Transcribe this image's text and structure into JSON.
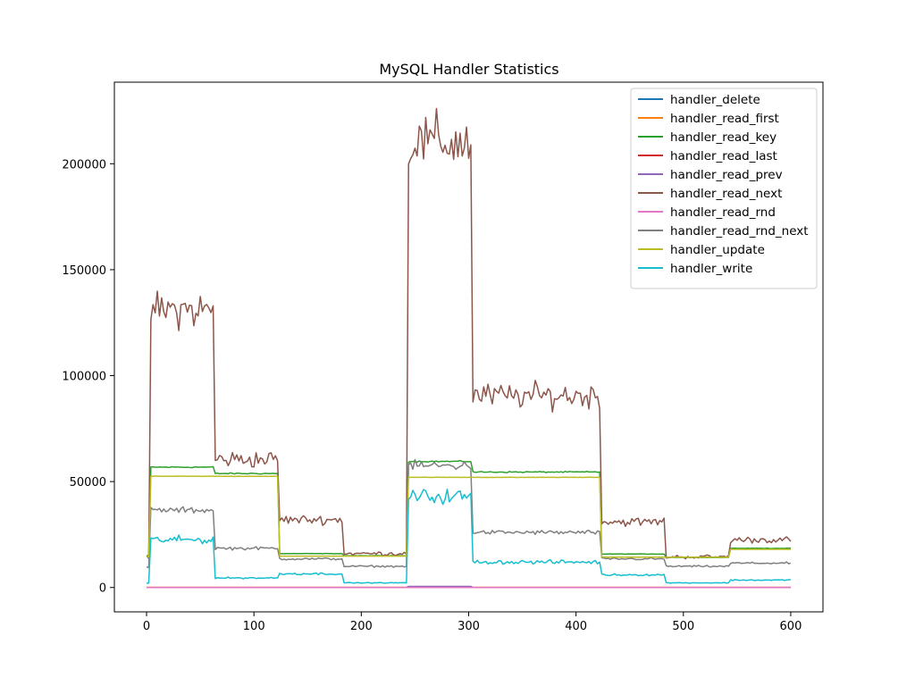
{
  "chart_data": {
    "type": "line",
    "title": "MySQL Handler Statistics",
    "xlabel": "",
    "ylabel": "",
    "xlim": [
      -30,
      630
    ],
    "ylim": [
      -11500,
      238500
    ],
    "x_ticks": [
      0,
      100,
      200,
      300,
      400,
      500,
      600
    ],
    "y_ticks": [
      0,
      50000,
      100000,
      150000,
      200000
    ],
    "grid": false,
    "legend_position": "top-right",
    "x_step": 2,
    "x_count": 300,
    "series": [
      {
        "name": "handler_delete",
        "color": "#1f77b4",
        "noise": 0,
        "segments": [
          {
            "x_start": 0,
            "x_end": 600,
            "y": 0
          }
        ]
      },
      {
        "name": "handler_read_first",
        "color": "#ff7f0e",
        "noise": 0,
        "segments": [
          {
            "x_start": 0,
            "x_end": 600,
            "y": 30
          }
        ]
      },
      {
        "name": "handler_read_key",
        "color": "#2ca02c",
        "noise": 0.004,
        "segments": [
          {
            "x_start": 0,
            "x_end": 2,
            "y": 15000
          },
          {
            "x_start": 4,
            "x_end": 62,
            "y": 56800
          },
          {
            "x_start": 64,
            "x_end": 122,
            "y": 53800
          },
          {
            "x_start": 124,
            "x_end": 182,
            "y": 16000
          },
          {
            "x_start": 184,
            "x_end": 242,
            "y": 15000
          },
          {
            "x_start": 244,
            "x_end": 302,
            "y": 59500
          },
          {
            "x_start": 304,
            "x_end": 422,
            "y": 54500
          },
          {
            "x_start": 424,
            "x_end": 482,
            "y": 15800
          },
          {
            "x_start": 484,
            "x_end": 542,
            "y": 14200
          },
          {
            "x_start": 544,
            "x_end": 600,
            "y": 18500
          }
        ]
      },
      {
        "name": "handler_read_last",
        "color": "#d62728",
        "noise": 0,
        "segments": [
          {
            "x_start": 0,
            "x_end": 600,
            "y": 20
          }
        ]
      },
      {
        "name": "handler_read_prev",
        "color": "#9467bd",
        "noise": 0,
        "segments": [
          {
            "x_start": 0,
            "x_end": 242,
            "y": 10
          },
          {
            "x_start": 244,
            "x_end": 302,
            "y": 500
          },
          {
            "x_start": 304,
            "x_end": 600,
            "y": 10
          }
        ]
      },
      {
        "name": "handler_read_next",
        "color": "#8c564b",
        "noise": 0.05,
        "segments": [
          {
            "x_start": 0,
            "x_end": 2,
            "y": 14000
          },
          {
            "x_start": 4,
            "x_end": 62,
            "y": 131000
          },
          {
            "x_start": 64,
            "x_end": 122,
            "y": 60500
          },
          {
            "x_start": 124,
            "x_end": 182,
            "y": 32000
          },
          {
            "x_start": 184,
            "x_end": 242,
            "y": 16000
          },
          {
            "x_start": 244,
            "x_end": 302,
            "y": 210000
          },
          {
            "x_start": 304,
            "x_end": 422,
            "y": 90500
          },
          {
            "x_start": 424,
            "x_end": 482,
            "y": 31000
          },
          {
            "x_start": 484,
            "x_end": 542,
            "y": 14500
          },
          {
            "x_start": 544,
            "x_end": 600,
            "y": 22500
          }
        ]
      },
      {
        "name": "handler_read_rnd",
        "color": "#e377c2",
        "noise": 0,
        "segments": [
          {
            "x_start": 0,
            "x_end": 600,
            "y": 0
          }
        ]
      },
      {
        "name": "handler_read_rnd_next",
        "color": "#7f7f7f",
        "noise": 0.03,
        "segments": [
          {
            "x_start": 0,
            "x_end": 2,
            "y": 9500
          },
          {
            "x_start": 4,
            "x_end": 62,
            "y": 36500
          },
          {
            "x_start": 64,
            "x_end": 122,
            "y": 18500
          },
          {
            "x_start": 124,
            "x_end": 182,
            "y": 13500
          },
          {
            "x_start": 184,
            "x_end": 242,
            "y": 10000
          },
          {
            "x_start": 244,
            "x_end": 302,
            "y": 57500
          },
          {
            "x_start": 304,
            "x_end": 422,
            "y": 26000
          },
          {
            "x_start": 424,
            "x_end": 482,
            "y": 13500
          },
          {
            "x_start": 484,
            "x_end": 542,
            "y": 10000
          },
          {
            "x_start": 544,
            "x_end": 600,
            "y": 11500
          }
        ]
      },
      {
        "name": "handler_update",
        "color": "#bcbd22",
        "noise": 0.001,
        "segments": [
          {
            "x_start": 0,
            "x_end": 2,
            "y": 14500
          },
          {
            "x_start": 4,
            "x_end": 122,
            "y": 52500
          },
          {
            "x_start": 124,
            "x_end": 242,
            "y": 14800
          },
          {
            "x_start": 244,
            "x_end": 422,
            "y": 52000
          },
          {
            "x_start": 424,
            "x_end": 542,
            "y": 14300
          },
          {
            "x_start": 544,
            "x_end": 600,
            "y": 18000
          }
        ]
      },
      {
        "name": "handler_write",
        "color": "#17becf",
        "noise": 0.06,
        "segments": [
          {
            "x_start": 0,
            "x_end": 2,
            "y": 2000
          },
          {
            "x_start": 4,
            "x_end": 62,
            "y": 22500
          },
          {
            "x_start": 64,
            "x_end": 122,
            "y": 4500
          },
          {
            "x_start": 124,
            "x_end": 182,
            "y": 6500
          },
          {
            "x_start": 184,
            "x_end": 242,
            "y": 2200
          },
          {
            "x_start": 244,
            "x_end": 302,
            "y": 43000
          },
          {
            "x_start": 304,
            "x_end": 422,
            "y": 12000
          },
          {
            "x_start": 424,
            "x_end": 482,
            "y": 6000
          },
          {
            "x_start": 484,
            "x_end": 542,
            "y": 2200
          },
          {
            "x_start": 544,
            "x_end": 600,
            "y": 3500
          }
        ]
      }
    ]
  }
}
